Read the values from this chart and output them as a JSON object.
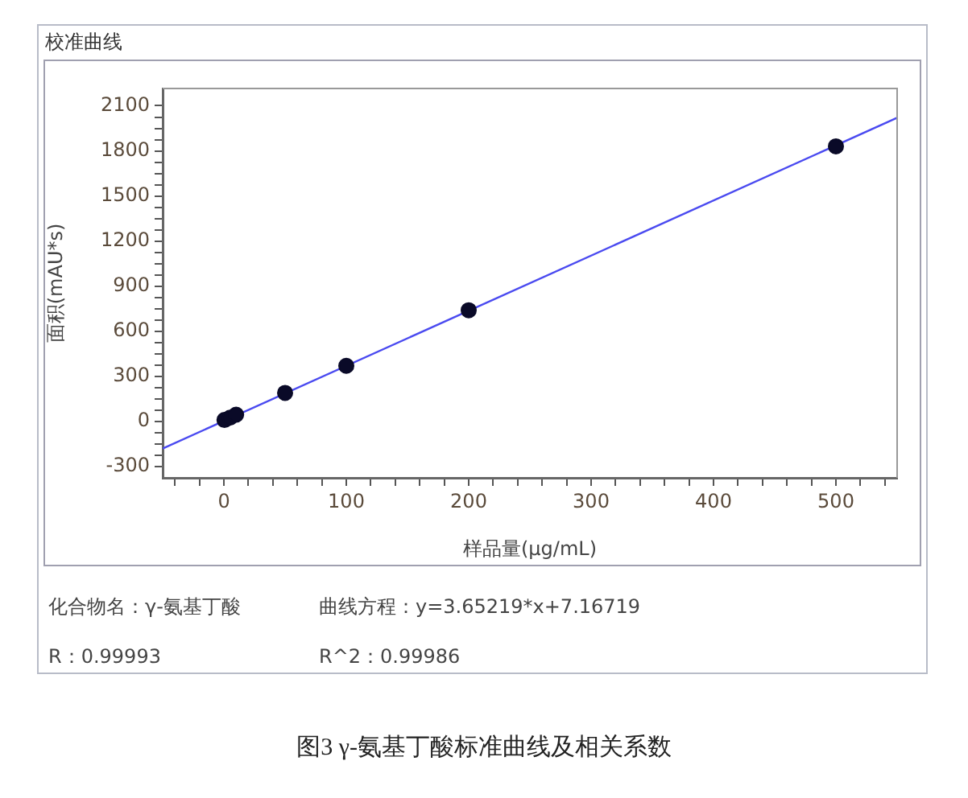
{
  "chart_data": {
    "type": "scatter",
    "title": "校准曲线",
    "xlabel": "样品量(μg/mL)",
    "ylabel": "面积(mAU*s)",
    "series": [
      {
        "type": "scatter",
        "color": "#0a0a28",
        "x": [
          0.5,
          5,
          10,
          50,
          100,
          200,
          500
        ],
        "values": [
          10,
          25,
          45,
          190,
          370,
          740,
          1830
        ]
      },
      {
        "type": "line",
        "color": "#4a4af0",
        "x": [
          -50,
          550
        ],
        "values": [
          -180,
          2020
        ],
        "marker": "none"
      }
    ],
    "xlim": [
      -50,
      550
    ],
    "ylim": [
      -375,
      2215
    ],
    "xticks": [
      {
        "value": -40,
        "label": null
      },
      {
        "value": -20,
        "label": null
      },
      0,
      {
        "value": 20,
        "label": null
      },
      {
        "value": 40,
        "label": null
      },
      {
        "value": 60,
        "label": null
      },
      {
        "value": 80,
        "label": null
      },
      100,
      {
        "value": 120,
        "label": null
      },
      {
        "value": 140,
        "label": null
      },
      {
        "value": 160,
        "label": null
      },
      {
        "value": 180,
        "label": null
      },
      200,
      {
        "value": 220,
        "label": null
      },
      {
        "value": 240,
        "label": null
      },
      {
        "value": 260,
        "label": null
      },
      {
        "value": 280,
        "label": null
      },
      300,
      {
        "value": 320,
        "label": null
      },
      {
        "value": 340,
        "label": null
      },
      {
        "value": 360,
        "label": null
      },
      {
        "value": 380,
        "label": null
      },
      400,
      {
        "value": 420,
        "label": null
      },
      {
        "value": 440,
        "label": null
      },
      {
        "value": 460,
        "label": null
      },
      {
        "value": 480,
        "label": null
      },
      500,
      {
        "value": 520,
        "label": null
      },
      {
        "value": 540,
        "label": null
      }
    ],
    "yticks": [
      -300,
      {
        "value": -225,
        "label": null
      },
      {
        "value": -150,
        "label": null
      },
      {
        "value": -75,
        "label": null
      },
      0,
      {
        "value": 75,
        "label": null
      },
      {
        "value": 150,
        "label": null
      },
      {
        "value": 225,
        "label": null
      },
      300,
      {
        "value": 375,
        "label": null
      },
      {
        "value": 450,
        "label": null
      },
      {
        "value": 525,
        "label": null
      },
      600,
      {
        "value": 675,
        "label": null
      },
      {
        "value": 750,
        "label": null
      },
      {
        "value": 825,
        "label": null
      },
      900,
      {
        "value": 975,
        "label": null
      },
      {
        "value": 1050,
        "label": null
      },
      {
        "value": 1125,
        "label": null
      },
      1200,
      {
        "value": 1275,
        "label": null
      },
      {
        "value": 1350,
        "label": null
      },
      {
        "value": 1425,
        "label": null
      },
      1500,
      {
        "value": 1575,
        "label": null
      },
      {
        "value": 1650,
        "label": null
      },
      {
        "value": 1725,
        "label": null
      },
      1800,
      {
        "value": 1875,
        "label": null
      },
      {
        "value": 1950,
        "label": null
      },
      {
        "value": 2025,
        "label": null
      },
      2100
    ],
    "grid": false,
    "legend": false,
    "marker": "circle",
    "line_style": "solid",
    "annotations": [
      "化合物名：γ-氨基丁酸",
      "曲线方程：y=3.65219*x+7.16719",
      "R：0.99993",
      "R^2：0.99986",
      "图3 γ-氨基丁酸标准曲线及相关系数"
    ]
  }
}
